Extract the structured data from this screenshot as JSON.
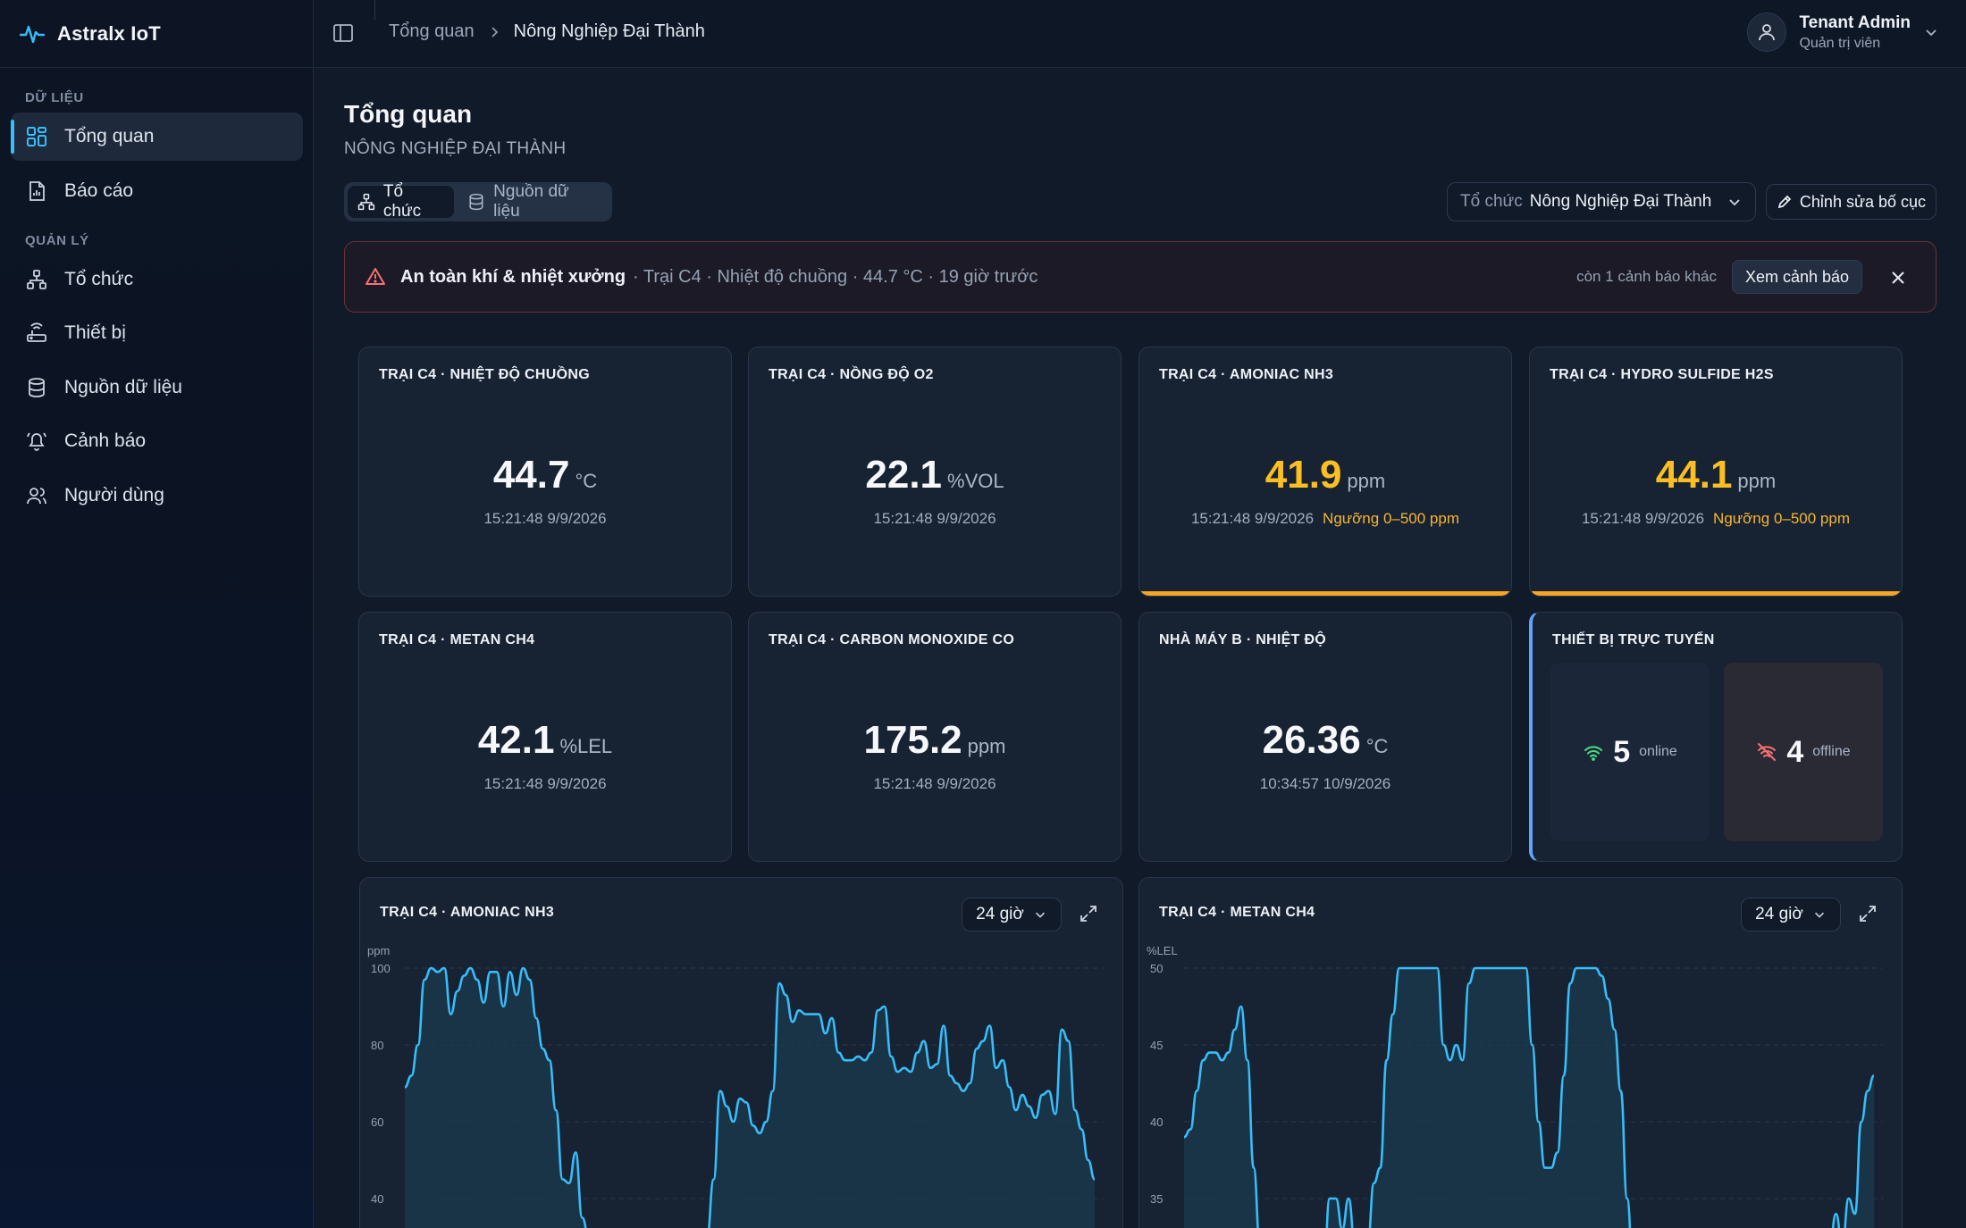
{
  "app": {
    "name": "Astralx IoT"
  },
  "sidebar": {
    "sections": [
      {
        "label": "DỮ LIỆU"
      },
      {
        "label": "QUẢN LÝ"
      }
    ],
    "items": [
      {
        "label": "Tổng quan",
        "icon": "dashboard-icon",
        "active": true
      },
      {
        "label": "Báo cáo",
        "icon": "report-icon"
      },
      {
        "label": "Tổ chức",
        "icon": "organization-icon"
      },
      {
        "label": "Thiết bị",
        "icon": "router-icon"
      },
      {
        "label": "Nguồn dữ liệu",
        "icon": "database-icon"
      },
      {
        "label": "Cảnh báo",
        "icon": "bell-icon"
      },
      {
        "label": "Người dùng",
        "icon": "users-icon"
      }
    ]
  },
  "topbar": {
    "breadcrumb": [
      "Tổng quan",
      "Nông Nghiệp Đại Thành"
    ],
    "user": {
      "name": "Tenant Admin",
      "role": "Quản trị viên"
    }
  },
  "page": {
    "title": "Tổng quan",
    "subtitle": "NÔNG NGHIỆP ĐẠI THÀNH",
    "segments": [
      {
        "label": "Tổ chức",
        "active": true
      },
      {
        "label": "Nguồn dữ liệu",
        "active": false
      }
    ],
    "org_select": {
      "label": "Tổ chức",
      "value": "Nông Nghiệp Đại Thành"
    },
    "edit_layout": "Chỉnh sửa bố cục"
  },
  "alert": {
    "title": "An toàn khí & nhiệt xưởng",
    "detail": "· Trại C4 · Nhiệt độ chuồng · 44.7 °C · 19 giờ trước",
    "more": "còn 1 cảnh báo khác",
    "view": "Xem cảnh báo"
  },
  "cards": [
    {
      "title": "TRẠI C4 · NHIỆT ĐỘ CHUỒNG",
      "value": "44.7",
      "unit": "°C",
      "time": "15:21:48 9/9/2026",
      "threshold": "",
      "warn": false
    },
    {
      "title": "TRẠI C4 · NỒNG ĐỘ O2",
      "value": "22.1",
      "unit": "%VOL",
      "time": "15:21:48 9/9/2026",
      "threshold": "",
      "warn": false
    },
    {
      "title": "TRẠI C4 · AMONIAC NH3",
      "value": "41.9",
      "unit": "ppm",
      "time": "15:21:48 9/9/2026",
      "threshold": "Ngưỡng 0–500 ppm",
      "warn": true
    },
    {
      "title": "TRẠI C4 · HYDRO SULFIDE H2S",
      "value": "44.1",
      "unit": "ppm",
      "time": "15:21:48 9/9/2026",
      "threshold": "Ngưỡng 0–500 ppm",
      "warn": true
    },
    {
      "title": "TRẠI C4 · METAN CH4",
      "value": "42.1",
      "unit": "%LEL",
      "time": "15:21:48 9/9/2026",
      "threshold": "",
      "warn": false
    },
    {
      "title": "TRẠI C4 · CARBON MONOXIDE CO",
      "value": "175.2",
      "unit": "ppm",
      "time": "15:21:48 9/9/2026",
      "threshold": "",
      "warn": false
    },
    {
      "title": "NHÀ MÁY B · NHIỆT ĐỘ",
      "value": "26.36",
      "unit": "°C",
      "time": "10:34:57 10/9/2026",
      "threshold": "",
      "warn": false
    }
  ],
  "devices": {
    "title": "THIẾT BỊ TRỰC TUYẾN",
    "online": {
      "count": "5",
      "label": "online"
    },
    "offline": {
      "count": "4",
      "label": "offline"
    }
  },
  "colors": {
    "accent": "#38bdf8",
    "warn": "#fbbf24",
    "danger": "#f87171",
    "online": "#4ade80"
  },
  "chart_data": [
    {
      "type": "area",
      "title": "TRẠI C4 · AMONIAC NH3",
      "range": "24 giờ",
      "ylabel": "ppm",
      "yticks": [
        100,
        80,
        60,
        40
      ],
      "ylim": [
        30,
        100
      ],
      "values": [
        69,
        72,
        80,
        97,
        100,
        99,
        100,
        88,
        94,
        98,
        100,
        97,
        91,
        99,
        99,
        90,
        99,
        93,
        100,
        97,
        87,
        79,
        76,
        63,
        45,
        44,
        52,
        35,
        30,
        30,
        30,
        30,
        30,
        30,
        30,
        30,
        30,
        30,
        30,
        30,
        30,
        30,
        30,
        30,
        30,
        30,
        30,
        45,
        68,
        64,
        60,
        66,
        65,
        59,
        57,
        60,
        68,
        96,
        93,
        86,
        89,
        88,
        88,
        88,
        83,
        87,
        78,
        76,
        76,
        77,
        76,
        78,
        89,
        90,
        77,
        73,
        74,
        73,
        78,
        81,
        74,
        75,
        85,
        72,
        70,
        68,
        70,
        79,
        81,
        85,
        74,
        76,
        69,
        63,
        67,
        64,
        61,
        67,
        68,
        62,
        84,
        81,
        63,
        58,
        50,
        45
      ]
    },
    {
      "type": "area",
      "title": "TRẠI C4 · METAN CH4",
      "range": "24 giờ",
      "ylabel": "%LEL",
      "yticks": [
        50,
        45,
        40,
        35
      ],
      "ylim": [
        30,
        50
      ],
      "values": [
        39,
        39.5,
        42,
        44,
        44.5,
        44.5,
        44,
        44.5,
        46,
        47.5,
        44,
        37,
        32,
        30,
        30,
        30,
        30,
        30,
        30,
        30,
        30,
        30,
        30,
        35,
        35,
        33,
        35,
        32,
        30,
        32,
        36,
        37,
        44,
        47,
        50,
        50,
        50,
        50,
        50,
        50,
        50,
        45,
        44,
        45,
        44,
        49,
        50,
        50,
        50,
        50,
        50,
        50,
        50,
        50,
        50,
        45,
        40,
        37,
        37,
        38,
        43,
        49,
        50,
        50,
        50,
        50,
        49.5,
        48,
        46,
        42,
        35,
        30,
        30,
        30,
        30,
        30,
        30,
        30,
        30,
        30,
        30,
        30,
        30,
        30,
        30,
        30,
        30,
        30,
        30,
        30,
        30,
        30,
        30,
        30,
        30,
        30,
        30,
        30,
        30,
        30,
        30,
        30,
        32,
        34,
        32,
        35,
        34,
        40,
        42,
        43
      ]
    }
  ]
}
